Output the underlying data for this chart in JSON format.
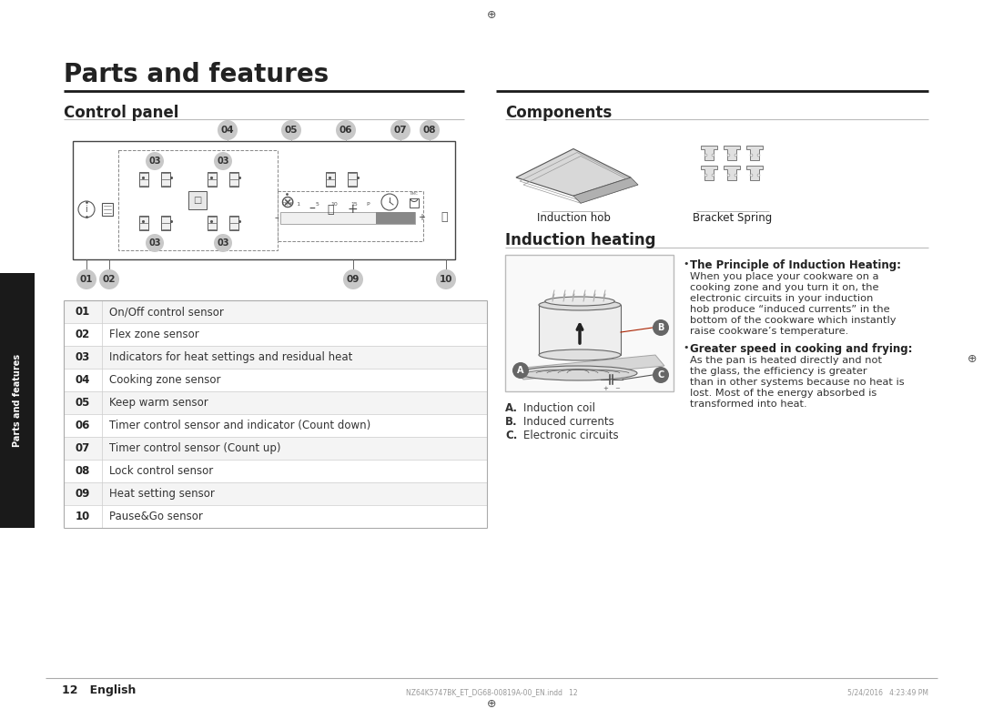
{
  "page_title": "Parts and features",
  "bg_color": "#ffffff",
  "sidebar_color": "#1a1a1a",
  "sidebar_text": "Parts and features",
  "left_section_title": "Control panel",
  "right_section_title_1": "Components",
  "right_section_title_2": "Induction heating",
  "table_rows": [
    [
      "01",
      "On/Off control sensor"
    ],
    [
      "02",
      "Flex zone sensor"
    ],
    [
      "03",
      "Indicators for heat settings and residual heat"
    ],
    [
      "04",
      "Cooking zone sensor"
    ],
    [
      "05",
      "Keep warm sensor"
    ],
    [
      "06",
      "Timer control sensor and indicator (Count down)"
    ],
    [
      "07",
      "Timer control sensor (Count up)"
    ],
    [
      "08",
      "Lock control sensor"
    ],
    [
      "09",
      "Heat setting sensor"
    ],
    [
      "10",
      "Pause&Go sensor"
    ]
  ],
  "component_labels": [
    "Induction hob",
    "Bracket Spring"
  ],
  "heating_labels_bold": [
    "A.",
    "B.",
    "C."
  ],
  "heating_labels": [
    "Induction coil",
    "Induced currents",
    "Electronic circuits"
  ],
  "bullet1_bold": "The Principle of Induction Heating:",
  "bullet1_text": "When you place your cookware on a cooking zone and you turn it on, the electronic circuits in your induction hob produce “induced currents” in the bottom of the cookware which instantly raise cookware’s temperature.",
  "bullet2_bold": "Greater speed in cooking and frying:",
  "bullet2_text": "As the pan is heated directly and not the glass, the efficiency is greater than in other systems because no heat is lost. Most of the energy absorbed is transformed into heat.",
  "footer_left": "12   English",
  "footer_file": "NZ64K5747BK_ET_DG68-00819A-00_EN.indd   12",
  "footer_date": "5/24/2016   4:23:49 PM"
}
